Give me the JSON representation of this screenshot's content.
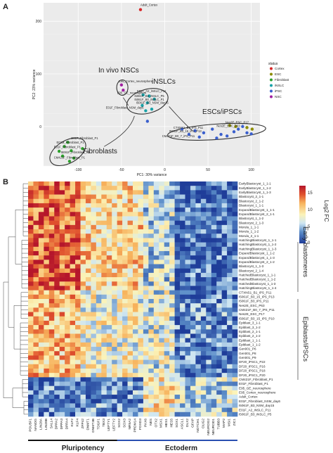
{
  "panel_a": {
    "letter": "A",
    "xlabel": "PC1: 30% variance",
    "ylabel": "PC2: 23% variance",
    "x_ticks": [
      "-100",
      "-50",
      "0",
      "50",
      "100"
    ],
    "y_ticks": [
      "200",
      "100",
      "0"
    ],
    "legend": {
      "title": "status",
      "items": [
        {
          "label": "Cortex",
          "color": "#d62728"
        },
        {
          "label": "ESC",
          "color": "#8c8c00"
        },
        {
          "label": "Fibroblast",
          "color": "#2ca02c"
        },
        {
          "label": "iNSLC",
          "color": "#17a2a8"
        },
        {
          "label": "iPSC",
          "color": "#3a5fcd"
        },
        {
          "label": "NSC",
          "color": "#a020a0"
        }
      ]
    },
    "group_labels": {
      "nsc": "In vivo NSCs",
      "inslc": "iNSLCs",
      "escipsc": "ESCs/iPSCs",
      "fibro": "Fibroblasts"
    },
    "point_labels": {
      "cortex": "Adult_Cortex",
      "nsc1": "E95_Cortex_neurosphere",
      "nsc2": "E95_GE_neurosphere",
      "in1": "E01F_A2_iNSLC_P11",
      "in2": "I5061F_B3_iNSLC_P5",
      "in3": "I5061F_B0_iNSLC_P1",
      "in4": "I5061F_B3_NSM_day15",
      "in5": "E01F_Fibroblast_NSM_day6",
      "ip1": "CTXNS1_B1_iPS_P11",
      "ip2": "I5061F_B3_15_iPS_P13",
      "ip3": "CM421F_B0_7_iPS_P11",
      "es1": "Nes2E_ESC_P17",
      "es2": "Nes2E_ESC_P63",
      "fb1": "E01F_Fibroblast_P1",
      "fb2": "E02M_Fibroblast_P1",
      "fb3": "E01F_Fibroblast_P1",
      "fb4": "I5061F_Fibroblast_P1",
      "fb5": "CM421F_Fibroblast_P1"
    }
  },
  "panel_b": {
    "letter": "B",
    "colorbar_label": "Log2 FC",
    "colorbar_ticks": [
      "15",
      "10",
      "5",
      "0"
    ],
    "group_labels": {
      "early": "Early blastomeres",
      "epi": "Epiblasts/iPSCs"
    },
    "bracket_labels": {
      "pluri": "Pluripotency",
      "ecto": "Ectoderm"
    },
    "colors": {
      "pluri_bar": "#111111",
      "ecto_bar": "#2a4fb0"
    }
  },
  "chart_data": [
    {
      "type": "scatter",
      "title": "",
      "xlabel": "PC1: 30% variance",
      "ylabel": "PC2: 23% variance",
      "xlim": [
        -140,
        110
      ],
      "ylim": [
        -75,
        235
      ],
      "series": [
        {
          "name": "Cortex",
          "points": [
            [
              -28,
              222
            ]
          ]
        },
        {
          "name": "NSC",
          "points": [
            [
              -50,
              79
            ],
            [
              -48,
              69
            ]
          ]
        },
        {
          "name": "iNSLC",
          "points": [
            [
              -25,
              60
            ],
            [
              -18,
              58
            ],
            [
              -12,
              52
            ],
            [
              -20,
              45
            ],
            [
              -26,
              40
            ],
            [
              -22,
              30
            ],
            [
              -15,
              33
            ]
          ]
        },
        {
          "name": "iPSC",
          "points": [
            [
              20,
              -5
            ],
            [
              35,
              -8
            ],
            [
              45,
              -12
            ],
            [
              55,
              -5
            ],
            [
              65,
              -15
            ],
            [
              80,
              -10
            ],
            [
              85,
              -5
            ],
            [
              95,
              -12
            ],
            [
              90,
              0
            ],
            [
              28,
              -15
            ],
            [
              40,
              -20
            ],
            [
              60,
              -22
            ],
            [
              72,
              -18
            ],
            [
              100,
              -14
            ],
            [
              -20,
              10
            ]
          ]
        },
        {
          "name": "ESC",
          "points": [
            [
              75,
              2
            ],
            [
              82,
              0
            ],
            [
              95,
              -2
            ],
            [
              101,
              -5
            ]
          ]
        },
        {
          "name": "Fibroblast",
          "points": [
            [
              -112,
              -30
            ],
            [
              -116,
              -38
            ],
            [
              -122,
              -47
            ],
            [
              -108,
              -46
            ],
            [
              -118,
              -56
            ],
            [
              -105,
              -60
            ],
            [
              -110,
              -66
            ],
            [
              -95,
              -42
            ]
          ]
        }
      ]
    },
    {
      "type": "heatmap",
      "title": "",
      "colorbar_label": "Log2 FC",
      "colorbar_range": [
        0,
        17
      ],
      "rows": [
        "EarlyBlastocyst_1_1-1",
        "EarlyBlastocyst_1_1-2",
        "EarlyBlastocyst_1_1-3",
        "Blastocyst_2_1-1",
        "Blastocyst_2_1-2",
        "Blastocyst_1_1-1",
        "ExpandBlastocyst_1_1-1",
        "ExpandBlastocyst_2_1-1",
        "Blastocyst_1_1-2",
        "Blastocyst_2_1-3",
        "Morula_1_1-1",
        "Morula_1_1-2",
        "Morula_2_1-1",
        "HatchingBlastocyst_1_1-1",
        "HatchingBlastocyst_1_1-2",
        "HatchingBlastocyst_1_1-3",
        "ExpandBlastocyst_1_1-2",
        "ExpandBlastocyst_1_1-3",
        "ExpandBlastocyst_2_1-2",
        "Blastocyst_1_1-3",
        "Blastocyst_2_1-4",
        "HatchedBlastocyst_1_1-1",
        "HatchedBlastocyst_1_1-2",
        "HatchedBlastocyst_1_1-3",
        "HatchingBlastocyst_1_1-4",
        "CTXNS1_B1_iPS_P11",
        "I5061F_B3_15_iPS_P13",
        "I5061F_B3_iPS_P11",
        "Nes2E_ESC_P63",
        "CM421F_B0_7_iPS_P11",
        "Nes2E_ESC_P17",
        "I5061F_B3_15_iPS_P10",
        "Epiblast_3_1-1",
        "Epiblast_3_1-2",
        "Epiblast_2_1-1",
        "Epiblast_2_1-2",
        "Epiblast_1_1-1",
        "Epiblast_1_1-2",
        "Gen001_P6",
        "Gen001_P8",
        "Gen001_P9",
        "DF20_iPSC1_P22",
        "DF20_iPSC1_P16",
        "DF20_iPSC1_P18",
        "DF20_iPSC1_P20",
        "CM421F_Fibroblast_P1",
        "E01F_Fibroblast_P1",
        "E95_GE_neurosphere",
        "E95_Cortex_neurosphere",
        "Adult_Cortex",
        "E01F_Fibroblast_NSM_day6",
        "I5061F_B3_NSM_day15",
        "E01F_A2_iNSLC_P11",
        "I5061F_B3_iNSLC_P5"
      ],
      "columns": [
        "POU5F1",
        "NANOG",
        "LIN28A",
        "LIN28B",
        "SALL4",
        "DPPA2",
        "DPPA3",
        "DPPA4",
        "KLF2",
        "KLF4",
        "ZFP42",
        "DNMT1",
        "DNMT3B",
        "TDGF1",
        "TBX3",
        "LEFTY1",
        "LEFTY2",
        "SOX2",
        "SOX3",
        "NR5A2",
        "PRDM14",
        "FOXD3",
        "PAX6",
        "NES",
        "OTX2",
        "MSX1",
        "HES1",
        "HES5",
        "SOX1",
        "ASCL1",
        "DLX2",
        "GFAP",
        "NOTCH1",
        "OLIG2",
        "NEUROG2",
        "NEUROD1",
        "TUBB3",
        "MAP2",
        "MSI1",
        "ZIC1"
      ],
      "group_brackets": [
        {
          "label": "Pluripotency",
          "from": "POU5F1",
          "to": "NR5A2"
        },
        {
          "label": "Ectoderm",
          "from": "SOX2",
          "to": "ZIC1"
        }
      ]
    }
  ]
}
